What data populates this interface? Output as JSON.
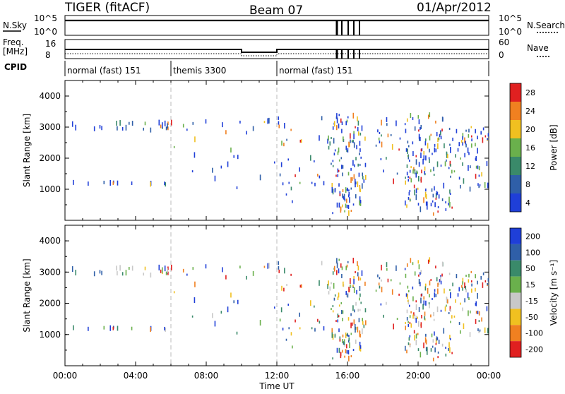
{
  "header": {
    "radar": "TIGER (fitACF)",
    "beam": "Beam 07",
    "date": "01/Apr/2012"
  },
  "left_labels": {
    "nsky": "N.Sky",
    "nsky_ticks": [
      "10^5",
      "10^0"
    ],
    "freq": "Freq.",
    "freq_unit": "[MHz]",
    "freq_ticks": [
      "16",
      "8"
    ],
    "cpid": "CPID"
  },
  "right_labels": {
    "nsearch": "N.Search",
    "nsky_ticks": [
      "10^5",
      "10^0"
    ],
    "nave": "Nave",
    "nave_ticks": [
      "60",
      "0"
    ]
  },
  "cpid_segments": [
    {
      "label": "normal (fast) 151",
      "start": 0,
      "end": 6
    },
    {
      "label": "themis 3300",
      "start": 6,
      "end": 12
    },
    {
      "label": "normal (fast) 151",
      "start": 12,
      "end": 24
    }
  ],
  "chart_data": [
    {
      "type": "scatter",
      "panel": "power",
      "xlabel": "",
      "ylabel": "Slant Range [km]",
      "xlim": [
        0,
        24
      ],
      "ylim": [
        0,
        4500
      ],
      "yticks": [
        "1000",
        "2000",
        "3000",
        "4000"
      ],
      "colorbar_label": "Power [dB]",
      "colorbar_ticks": [
        "4",
        "8",
        "12",
        "16",
        "20",
        "24",
        "28"
      ],
      "colors": [
        "#1f3fd8",
        "#2f5fa8",
        "#3a8a6a",
        "#6ab04c",
        "#f0c020",
        "#f08020",
        "#e02020"
      ]
    },
    {
      "type": "scatter",
      "panel": "velocity",
      "xlabel": "Time UT",
      "ylabel": "Slant Range [km]",
      "xlim": [
        0,
        24
      ],
      "ylim": [
        0,
        4500
      ],
      "yticks": [
        "1000",
        "2000",
        "3000",
        "4000"
      ],
      "xticks": [
        "00:00",
        "04:00",
        "08:00",
        "12:00",
        "16:00",
        "20:00",
        "00:00"
      ],
      "colorbar_label": "Velocity [m s⁻¹]",
      "colorbar_ticks": [
        "200",
        "100",
        "50",
        "15",
        "-15",
        "-50",
        "-100",
        "-200"
      ],
      "colors": [
        "#1f3fd8",
        "#2f5fa8",
        "#3a8a6a",
        "#6ab04c",
        "#c8c8c8",
        "#f0c020",
        "#f08020",
        "#e02020"
      ]
    }
  ]
}
